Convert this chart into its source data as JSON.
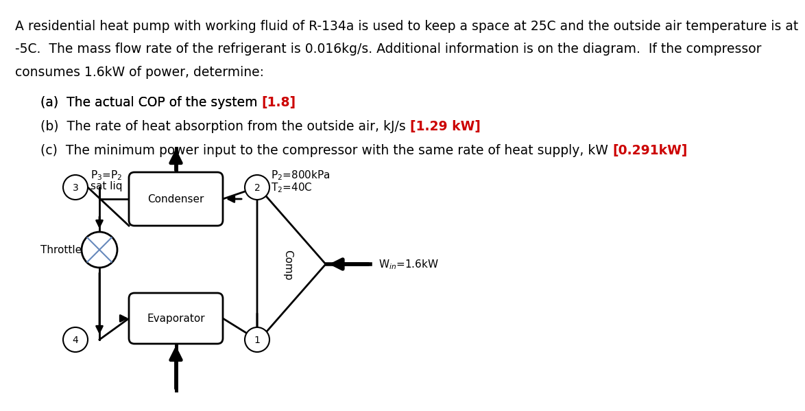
{
  "bg_color": "#ffffff",
  "text_color": "#000000",
  "red_color": "#cc0000",
  "line1": "A residential heat pump with working fluid of R-134a is used to keep a space at 25C and the outside air temperature is at",
  "line2": "-5C.  The mass flow rate of the refrigerant is 0.016kg/s. Additional information is on the diagram.  If the compressor",
  "line3": "consumes 1.6kW of power, determine:",
  "ans_a_black": "(a)  The actual COP of the system ",
  "ans_a_red": "[1.8]",
  "ans_b_black": "(b)  The rate of heat absorption from the outside air, kJ/s ",
  "ans_b_red": "[1.29 kW]",
  "ans_c_black": "(c)  The minimum power input to the compressor with the same rate of heat supply, kW ",
  "ans_c_red": "[0.291kW]",
  "font_size_text": 13.5,
  "font_size_diagram": 11,
  "font_size_node": 10
}
